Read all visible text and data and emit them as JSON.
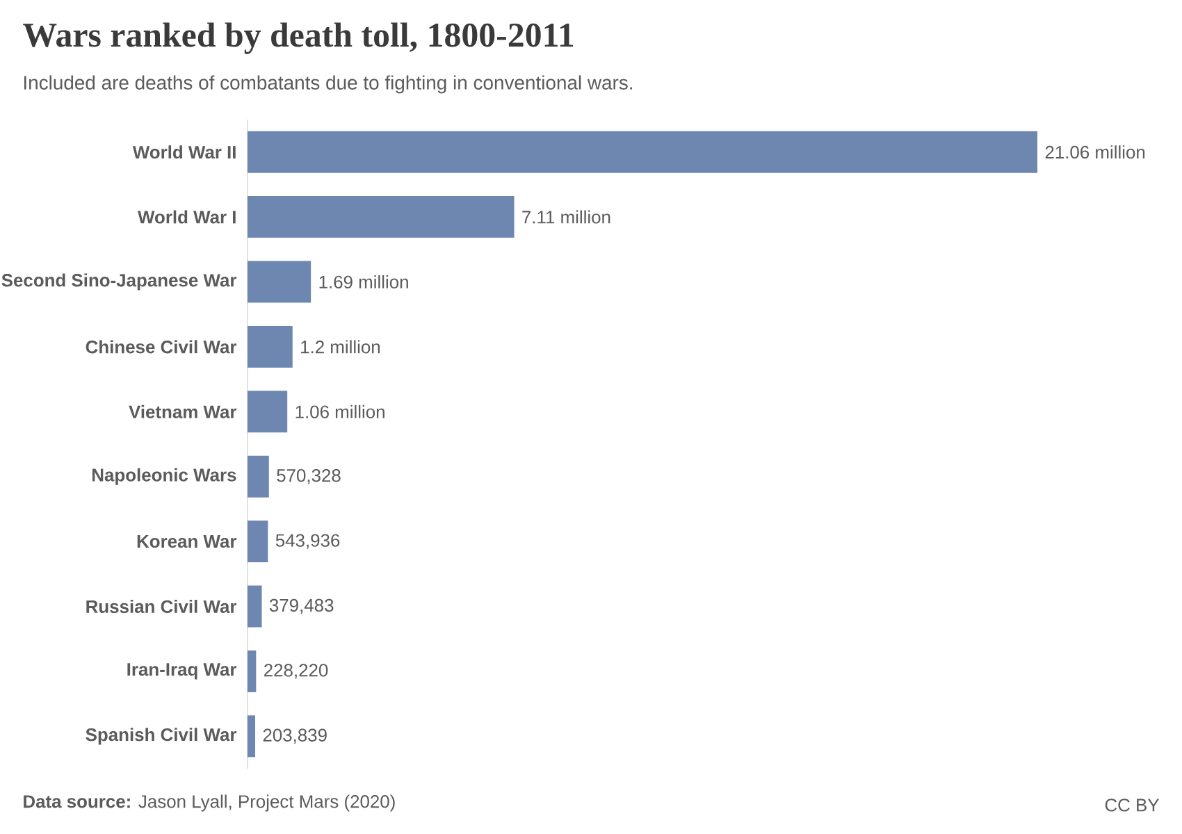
{
  "chart_data": {
    "type": "bar",
    "orientation": "horizontal",
    "title": "Wars ranked by death toll, 1800-2011",
    "subtitle": "Included are deaths of combatants due to fighting in conventional wars.",
    "categories": [
      "World War II",
      "World War I",
      "Second Sino-Japanese War",
      "Chinese Civil War",
      "Vietnam War",
      "Napoleonic Wars",
      "Korean War",
      "Russian Civil War",
      "Iran-Iraq War",
      "Spanish Civil War"
    ],
    "values": [
      21060000,
      7110000,
      1690000,
      1200000,
      1060000,
      570328,
      543936,
      379483,
      228220,
      203839
    ],
    "value_labels": [
      "21.06 million",
      "7.11 million",
      "1.69 million",
      "1.2 million",
      "1.06 million",
      "570,328",
      "543,936",
      "379,483",
      "228,220",
      "203,839"
    ],
    "color": "#6d87b1",
    "annotations": [
      "**Data source:** Jason Lyall, Project Mars (2020)",
      "CC BY"
    ]
  }
}
